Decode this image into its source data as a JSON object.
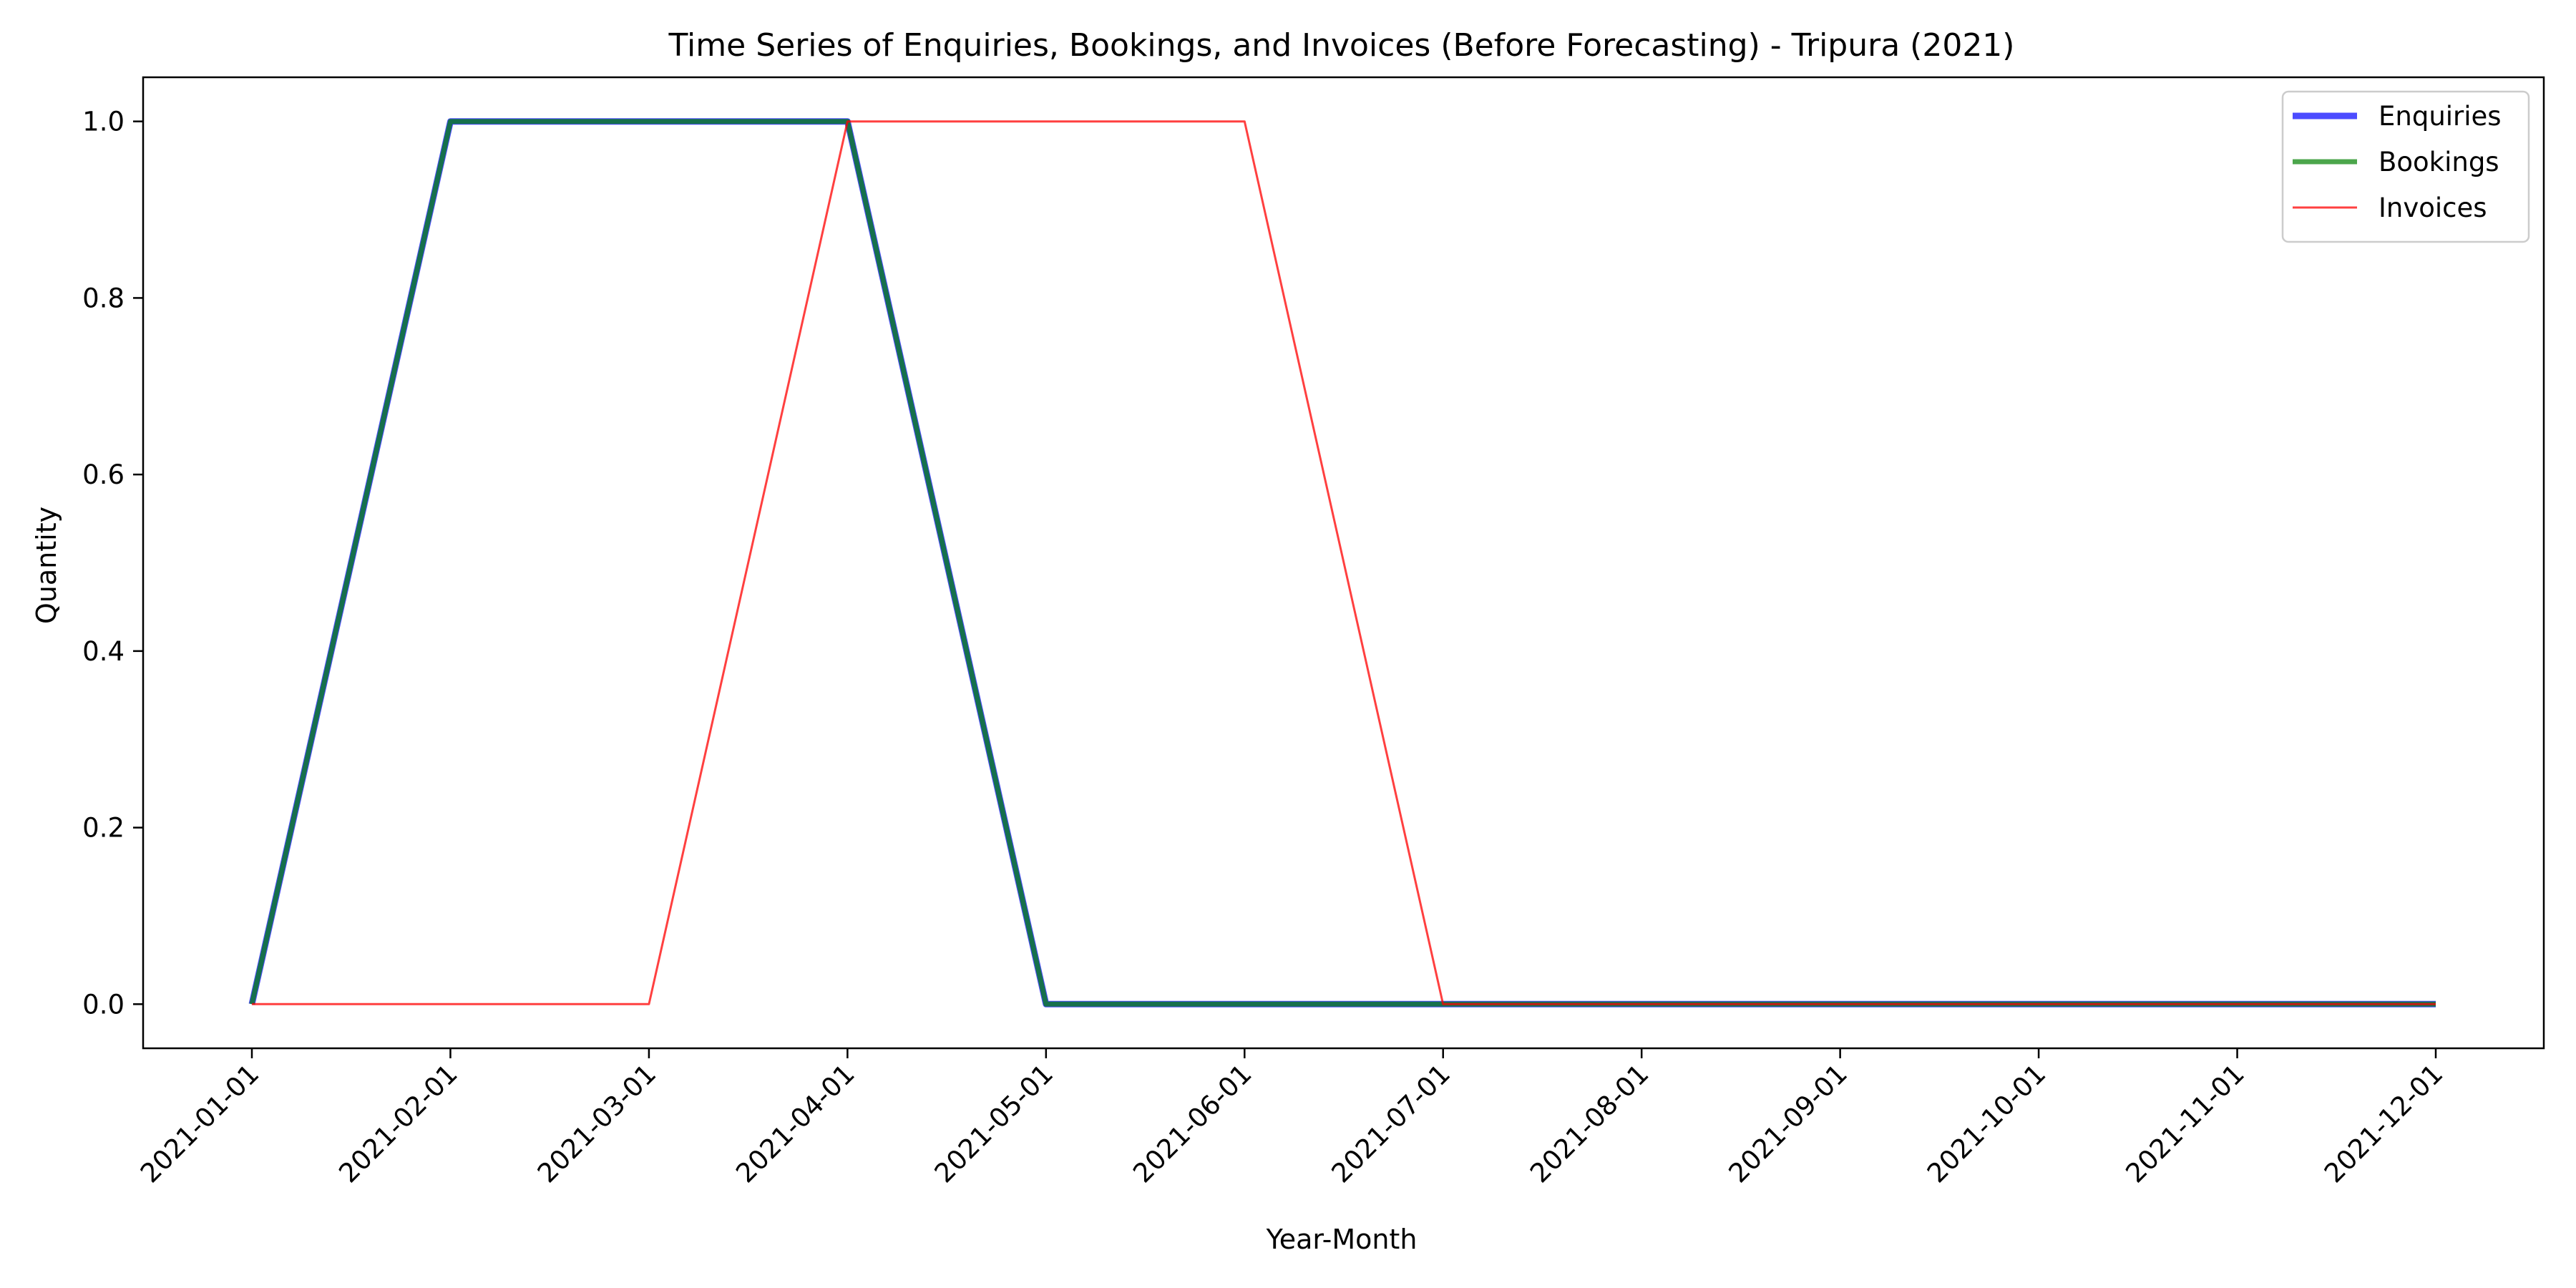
{
  "chart_data": {
    "type": "line",
    "title": "Time Series of Enquiries, Bookings, and Invoices (Before Forecasting) - Tripura (2021)",
    "xlabel": "Year-Month",
    "ylabel": "Quantity",
    "x": [
      "2021-01-01",
      "2021-02-01",
      "2021-03-01",
      "2021-04-01",
      "2021-05-01",
      "2021-06-01",
      "2021-07-01",
      "2021-08-01",
      "2021-09-01",
      "2021-10-01",
      "2021-11-01",
      "2021-12-01"
    ],
    "ylim": [
      -0.05,
      1.05
    ],
    "yticks": [
      "0.0",
      "0.2",
      "0.4",
      "0.6",
      "0.8",
      "1.0"
    ],
    "ytick_values": [
      0,
      0.2,
      0.4,
      0.6,
      0.8,
      1.0
    ],
    "grid": false,
    "legend_position": "top-right",
    "series": [
      {
        "name": "Enquiries",
        "color": "#0000ff",
        "opacity": 0.7,
        "width": "thick",
        "values": [
          0,
          1,
          1,
          1,
          0,
          0,
          0,
          0,
          0,
          0,
          0,
          0
        ]
      },
      {
        "name": "Bookings",
        "color": "#008000",
        "opacity": 0.7,
        "width": "medium",
        "values": [
          0,
          1,
          1,
          1,
          0,
          0,
          0,
          0,
          0,
          0,
          0,
          0
        ]
      },
      {
        "name": "Invoices",
        "color": "#ff0000",
        "opacity": 0.75,
        "width": "thin",
        "values": [
          0,
          0,
          0,
          1,
          1,
          1,
          0,
          0,
          0,
          0,
          0,
          0
        ]
      }
    ]
  }
}
